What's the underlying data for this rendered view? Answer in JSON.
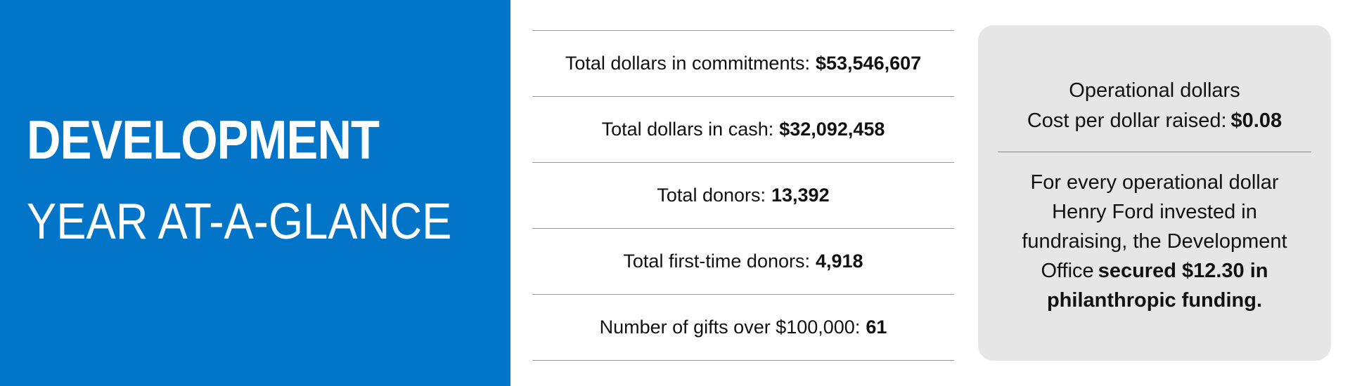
{
  "header": {
    "title": "DEVELOPMENT",
    "subtitle": "YEAR AT-A-GLANCE"
  },
  "stats": [
    {
      "label": "Total dollars in commitments:",
      "value": "$53,546,607"
    },
    {
      "label": "Total dollars in cash:",
      "value": "$32,092,458"
    },
    {
      "label": "Total donors:",
      "value": "13,392"
    },
    {
      "label": "Total first-time donors:",
      "value": "4,918"
    },
    {
      "label": "Number of gifts over $100,000:",
      "value": "61"
    }
  ],
  "card": {
    "title": "Operational dollars",
    "metric_label": "Cost per dollar raised:",
    "metric_value": "$0.08",
    "body": "For every operational dollar Henry Ford invested in fundraising, the Development Office",
    "body_emphasis": "secured $12.30 in philanthropic funding."
  }
}
